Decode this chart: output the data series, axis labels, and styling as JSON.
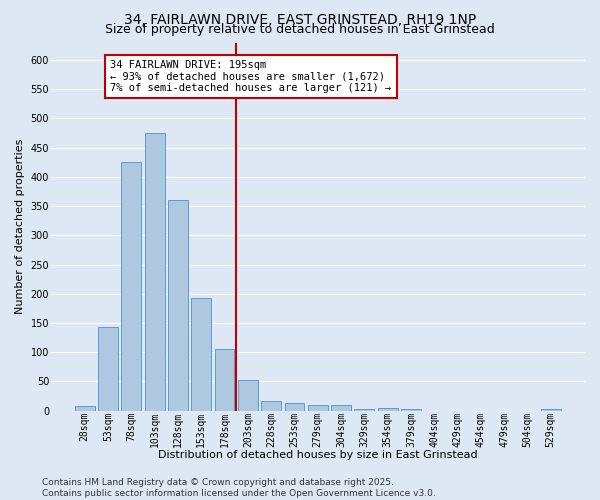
{
  "title_line1": "34, FAIRLAWN DRIVE, EAST GRINSTEAD, RH19 1NP",
  "title_line2": "Size of property relative to detached houses in East Grinstead",
  "xlabel": "Distribution of detached houses by size in East Grinstead",
  "ylabel": "Number of detached properties",
  "bar_labels": [
    "28sqm",
    "53sqm",
    "78sqm",
    "103sqm",
    "128sqm",
    "153sqm",
    "178sqm",
    "203sqm",
    "228sqm",
    "253sqm",
    "279sqm",
    "304sqm",
    "329sqm",
    "354sqm",
    "379sqm",
    "404sqm",
    "429sqm",
    "454sqm",
    "479sqm",
    "504sqm",
    "529sqm"
  ],
  "bar_values": [
    8,
    143,
    425,
    475,
    360,
    192,
    105,
    53,
    17,
    13,
    10,
    9,
    2,
    4,
    2,
    0,
    0,
    0,
    0,
    0,
    3
  ],
  "bar_color": "#aec8e0",
  "bar_edge_color": "#5b9bd5",
  "vline_color": "#c00000",
  "annotation_text": "34 FAIRLAWN DRIVE: 195sqm\n← 93% of detached houses are smaller (1,672)\n7% of semi-detached houses are larger (121) →",
  "annotation_box_color": "#ffffff",
  "annotation_box_edge_color": "#c00000",
  "ylim": [
    0,
    630
  ],
  "yticks": [
    0,
    50,
    100,
    150,
    200,
    250,
    300,
    350,
    400,
    450,
    500,
    550,
    600
  ],
  "background_color": "#dde8f4",
  "grid_color": "#ffffff",
  "footer_text": "Contains HM Land Registry data © Crown copyright and database right 2025.\nContains public sector information licensed under the Open Government Licence v3.0.",
  "title_fontsize": 10,
  "subtitle_fontsize": 9,
  "axis_label_fontsize": 8,
  "tick_fontsize": 7,
  "annotation_fontsize": 7.5,
  "footer_fontsize": 6.5
}
